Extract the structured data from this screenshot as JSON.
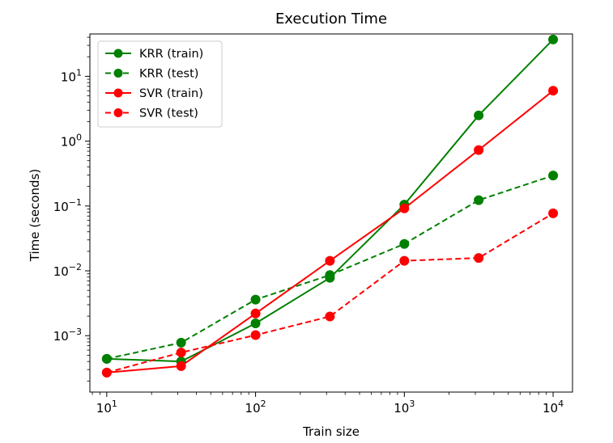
{
  "chart_data": {
    "type": "line",
    "title": "Execution Time",
    "xlabel": "Train size",
    "ylabel": "Time (seconds)",
    "x_scale": "log",
    "y_scale": "log",
    "xlim": [
      7.7,
      13500
    ],
    "ylim": [
      0.000135,
      45
    ],
    "x_ticks": [
      {
        "value": 10,
        "base": "10",
        "exp": "1"
      },
      {
        "value": 100,
        "base": "10",
        "exp": "2"
      },
      {
        "value": 1000,
        "base": "10",
        "exp": "3"
      },
      {
        "value": 10000,
        "base": "10",
        "exp": "4"
      }
    ],
    "y_ticks": [
      {
        "value": 0.001,
        "base": "10",
        "exp": "−3"
      },
      {
        "value": 0.01,
        "base": "10",
        "exp": "−2"
      },
      {
        "value": 0.1,
        "base": "10",
        "exp": "−1"
      },
      {
        "value": 1,
        "base": "10",
        "exp": "0"
      },
      {
        "value": 10,
        "base": "10",
        "exp": "1"
      }
    ],
    "x": [
      10,
      31.6,
      100,
      316,
      1000,
      3160,
      10000
    ],
    "series": [
      {
        "name": "KRR (train)",
        "color": "#008000",
        "dashed": false,
        "values": [
          0.00044,
          0.0004,
          0.00155,
          0.0078,
          0.105,
          2.5,
          37
        ]
      },
      {
        "name": "KRR (test)",
        "color": "#008000",
        "dashed": true,
        "values": [
          0.00044,
          0.00078,
          0.0036,
          0.0086,
          0.026,
          0.123,
          0.295
        ]
      },
      {
        "name": "SVR (train)",
        "color": "#ff0000",
        "dashed": false,
        "values": [
          0.00027,
          0.00034,
          0.0022,
          0.0143,
          0.092,
          0.73,
          6.0
        ]
      },
      {
        "name": "SVR (test)",
        "color": "#ff0000",
        "dashed": true,
        "values": [
          0.00027,
          0.00055,
          0.00102,
          0.00198,
          0.0143,
          0.0158,
          0.077
        ]
      }
    ],
    "legend_position": "top-left",
    "grid": false
  }
}
